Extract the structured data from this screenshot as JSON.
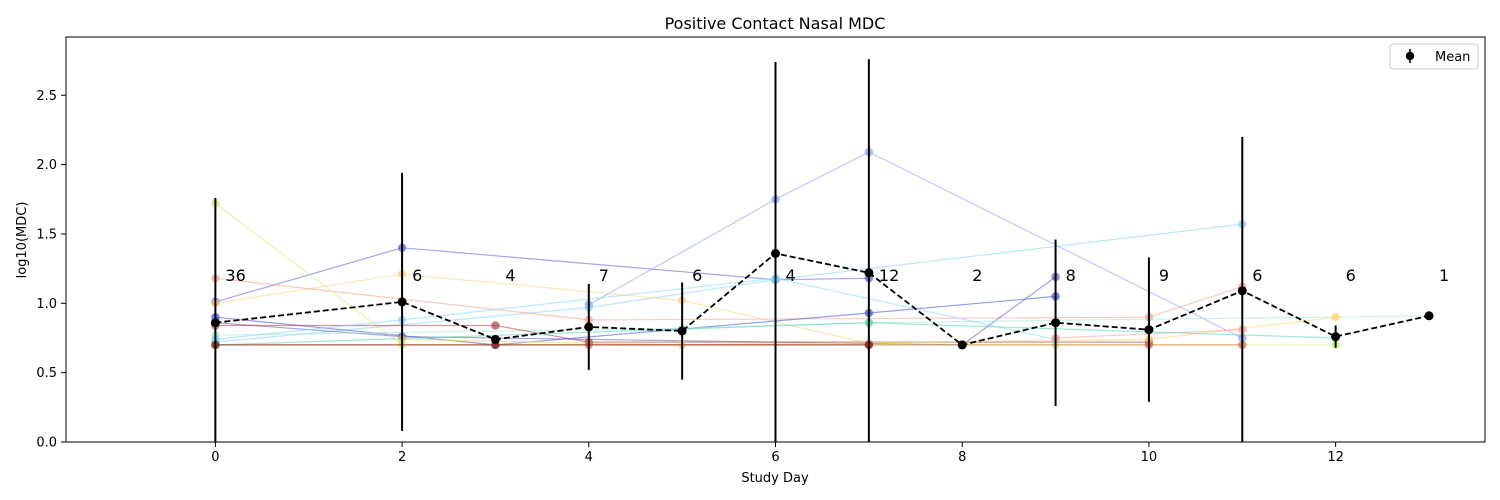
{
  "chart_data": {
    "type": "line",
    "title": "Positive Contact Nasal MDC",
    "xlabel": "Study Day",
    "ylabel": "log10(MDC)",
    "xlim": [
      -1.6,
      13.6
    ],
    "ylim": [
      0,
      2.92
    ],
    "xticks": [
      0,
      2,
      4,
      6,
      8,
      10,
      12
    ],
    "yticks": [
      0.0,
      0.5,
      1.0,
      1.5,
      2.0,
      2.5
    ],
    "ytick_labels": [
      "0.0",
      "0.5",
      "1.0",
      "1.5",
      "2.0",
      "2.5"
    ],
    "grid": false,
    "legend": {
      "position": "top-right",
      "entries": [
        "Mean"
      ]
    },
    "mean": {
      "name": "Mean",
      "color": "#000000",
      "x": [
        0,
        2,
        3,
        4,
        5,
        6,
        7,
        8,
        9,
        10,
        11,
        12,
        13
      ],
      "y": [
        0.86,
        1.01,
        0.74,
        0.83,
        0.8,
        1.36,
        1.22,
        0.7,
        0.86,
        0.81,
        1.09,
        0.76,
        0.91
      ],
      "err": [
        0.9,
        0.93,
        0.0,
        0.31,
        0.35,
        1.38,
        1.54,
        0.0,
        0.6,
        0.52,
        1.11,
        0.08,
        0.0
      ]
    },
    "counts": {
      "x": [
        0,
        2,
        3,
        4,
        5,
        6,
        7,
        8,
        9,
        10,
        11,
        12,
        13
      ],
      "labels": [
        "36",
        "6",
        "4",
        "7",
        "6",
        "4",
        "12",
        "2",
        "8",
        "9",
        "6",
        "6",
        "1"
      ]
    },
    "subjects": [
      {
        "color": "#5a5ad8",
        "x": [
          0,
          2,
          6,
          7
        ],
        "y": [
          1.01,
          1.4,
          1.17,
          1.18
        ]
      },
      {
        "color": "#8aa0f0",
        "x": [
          4,
          6,
          7,
          11
        ],
        "y": [
          0.99,
          1.75,
          2.09,
          0.75
        ]
      },
      {
        "color": "#7fd0f5",
        "x": [
          0,
          4,
          6,
          11
        ],
        "y": [
          0.72,
          0.97,
          1.17,
          1.57
        ]
      },
      {
        "color": "#ffcf7a",
        "x": [
          0,
          2,
          5,
          7
        ],
        "y": [
          1.0,
          1.21,
          1.02,
          0.71
        ]
      },
      {
        "color": "#f4a08a",
        "x": [
          0,
          4,
          10,
          11
        ],
        "y": [
          1.18,
          0.88,
          0.9,
          1.12
        ]
      },
      {
        "color": "#3a4fd8",
        "x": [
          0,
          3,
          7,
          9
        ],
        "y": [
          0.9,
          0.7,
          0.93,
          1.05
        ]
      },
      {
        "color": "#5a5ab8",
        "x": [
          0,
          2,
          8,
          9
        ],
        "y": [
          0.86,
          0.76,
          0.7,
          1.19
        ]
      },
      {
        "color": "#c7f06a",
        "x": [
          0,
          2,
          9,
          12
        ],
        "y": [
          1.72,
          0.7,
          0.7,
          0.7
        ]
      },
      {
        "color": "#9fe8d0",
        "x": [
          0,
          5,
          7,
          13
        ],
        "y": [
          0.77,
          0.82,
          0.86,
          0.91
        ]
      },
      {
        "color": "#b04040",
        "x": [
          0,
          3,
          4,
          10
        ],
        "y": [
          0.84,
          0.84,
          0.72,
          0.72
        ]
      },
      {
        "color": "#ffd060",
        "x": [
          2,
          5,
          10,
          12
        ],
        "y": [
          0.74,
          0.7,
          0.74,
          0.9
        ]
      },
      {
        "color": "#d86a3a",
        "x": [
          0,
          4,
          7,
          10,
          11
        ],
        "y": [
          0.7,
          0.7,
          0.7,
          0.7,
          0.7
        ]
      },
      {
        "color": "#7fd7ff",
        "x": [
          0,
          2,
          6,
          9
        ],
        "y": [
          0.74,
          0.88,
          1.18,
          0.74
        ]
      },
      {
        "color": "#ff9a9a",
        "x": [
          9,
          11
        ],
        "y": [
          0.75,
          0.81
        ]
      },
      {
        "color": "#4fd6b0",
        "x": [
          0,
          7,
          12
        ],
        "y": [
          0.7,
          0.86,
          0.75
        ]
      },
      {
        "color": "#8b1a1a",
        "x": [
          0,
          3,
          7
        ],
        "y": [
          0.7,
          0.7,
          0.7
        ]
      }
    ]
  }
}
